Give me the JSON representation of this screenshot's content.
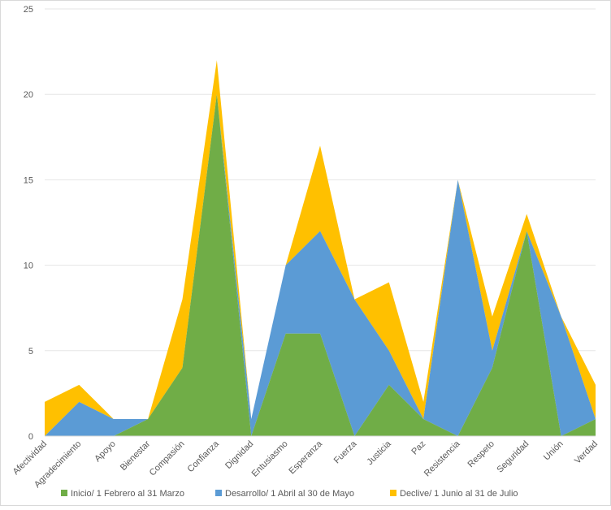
{
  "chart_data": {
    "type": "area",
    "stacked": true,
    "categories": [
      "Afectividad",
      "Agradecimiento",
      "Apoyo",
      "Bienestar",
      "Compasión",
      "Confianza",
      "Dignidad",
      "Entusiasmo",
      "Esperanza",
      "Fuerza",
      "Justicia",
      "Paz",
      "Resistencia",
      "Respeto",
      "Seguridad",
      "Unión",
      "Verdad"
    ],
    "series": [
      {
        "name": "Inicio/ 1 Febrero al 31 Marzo",
        "color": "#70ad47",
        "values": [
          0,
          0,
          0,
          1,
          4,
          20,
          0,
          6,
          6,
          0,
          3,
          1,
          0,
          4,
          12,
          0,
          1
        ]
      },
      {
        "name": "Desarrollo/ 1 Abril al 30 de Mayo",
        "color": "#5b9bd5",
        "values": [
          0,
          2,
          1,
          0,
          0,
          0,
          1,
          4,
          6,
          8,
          2,
          0,
          15,
          1,
          0,
          7,
          0
        ]
      },
      {
        "name": "Declive/ 1 Junio al 31 de Julio",
        "color": "#ffc000",
        "values": [
          2,
          1,
          0,
          0,
          4,
          2,
          0,
          0,
          5,
          0,
          4,
          1,
          0,
          2,
          1,
          0,
          2
        ]
      }
    ],
    "ylim": [
      0,
      25
    ],
    "yticks": [
      0,
      5,
      10,
      15,
      20,
      25
    ],
    "grid": true,
    "legend": "bottom"
  }
}
